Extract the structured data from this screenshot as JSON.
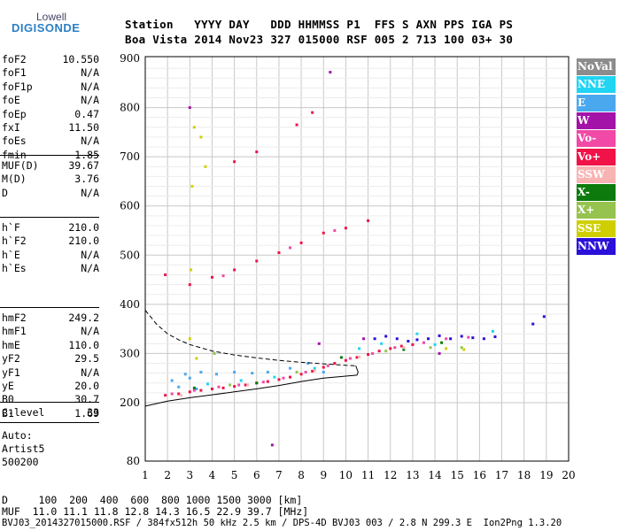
{
  "logo": {
    "top": "Lowell",
    "bottom": "DIGISONDE"
  },
  "header": {
    "line1": "Station   YYYY DAY   DDD HHMMSS P1  FFS S AXN PPS IGA PS",
    "line2": "Boa Vista 2014 Nov23 327 015000 RSF 005 2 713 100 03+ 30"
  },
  "params_group1": [
    {
      "k": "foF2",
      "v": "10.550"
    },
    {
      "k": "foF1",
      "v": "N/A"
    },
    {
      "k": "foF1p",
      "v": "N/A"
    },
    {
      "k": "foE",
      "v": "N/A"
    },
    {
      "k": "foEp",
      "v": "0.47"
    },
    {
      "k": "fxI",
      "v": "11.50"
    },
    {
      "k": "foEs",
      "v": "N/A"
    },
    {
      "k": "fmin",
      "v": "1.85"
    }
  ],
  "params_group2": [
    {
      "k": "MUF(D)",
      "v": "39.67"
    },
    {
      "k": "M(D)",
      "v": "3.76"
    },
    {
      "k": "D",
      "v": "N/A"
    }
  ],
  "params_group3": [
    {
      "k": "h`F",
      "v": "210.0"
    },
    {
      "k": "h`F2",
      "v": "210.0"
    },
    {
      "k": "h`E",
      "v": "N/A"
    },
    {
      "k": "h`Es",
      "v": "N/A"
    }
  ],
  "params_group4": [
    {
      "k": "hmF2",
      "v": "249.2"
    },
    {
      "k": "hmF1",
      "v": "N/A"
    },
    {
      "k": "hmE",
      "v": "110.0"
    },
    {
      "k": "yF2",
      "v": "29.5"
    },
    {
      "k": "yF1",
      "v": "N/A"
    },
    {
      "k": "yE",
      "v": "20.0"
    },
    {
      "k": "B0",
      "v": "30.7"
    },
    {
      "k": "B1",
      "v": "1.69"
    }
  ],
  "params_group5": [
    {
      "k": "C-level",
      "v": "33"
    }
  ],
  "auto": [
    "Auto:",
    "Artist5",
    "500200"
  ],
  "footer": {
    "line1": "D     100  200  400  600  800 1000 1500 3000 [km]",
    "line2": "MUF  11.0 11.1 11.8 12.8 14.3 16.5 22.9 39.7 [MHz]",
    "line3": "BVJ03_2014327015000.RSF / 384fx512h 50 kHz 2.5 km / DPS-4D BVJ03 003 / 2.8 N 299.3 E  Ion2Png 1.3.20"
  },
  "legend": [
    {
      "label": "NoVal",
      "bg": "#8c8c8c",
      "fg": "#ffffff"
    },
    {
      "label": "NNE",
      "bg": "#21d4f2",
      "fg": "#ffffff"
    },
    {
      "label": "E",
      "bg": "#4aa8ee",
      "fg": "#ffffff"
    },
    {
      "label": "W",
      "bg": "#a313a8",
      "fg": "#ffffff"
    },
    {
      "label": "Vo-",
      "bg": "#f04aa6",
      "fg": "#ffffff"
    },
    {
      "label": "Vo+",
      "bg": "#f01248",
      "fg": "#ffffff"
    },
    {
      "label": "SSW",
      "bg": "#f8b3b3",
      "fg": "#ffffff"
    },
    {
      "label": "X-",
      "bg": "#0c7a0c",
      "fg": "#ffffff"
    },
    {
      "label": "X+",
      "bg": "#95c34e",
      "fg": "#ffffff"
    },
    {
      "label": "SSE",
      "bg": "#cfcf00",
      "fg": "#ffffff"
    },
    {
      "label": "NNW",
      "bg": "#2a10d8",
      "fg": "#ffffff"
    }
  ],
  "chart_data": {
    "type": "scatter",
    "xlim": [
      1,
      20
    ],
    "ylim": [
      80,
      900
    ],
    "x_ticks": [
      1,
      2,
      3,
      4,
      5,
      6,
      7,
      8,
      9,
      10,
      11,
      12,
      13,
      14,
      15,
      16,
      17,
      18,
      19,
      20
    ],
    "y_ticks": [
      80,
      200,
      300,
      400,
      500,
      600,
      700,
      800,
      900
    ],
    "grid": true,
    "series": [
      {
        "name": "E",
        "color": "#4aa8ee",
        "points": [
          [
            2.2,
            245
          ],
          [
            2.8,
            258
          ],
          [
            3.5,
            262
          ],
          [
            4.2,
            258
          ],
          [
            5.0,
            262
          ],
          [
            5.8,
            260
          ],
          [
            6.5,
            262
          ],
          [
            7.5,
            270
          ],
          [
            8.3,
            280
          ],
          [
            9.0,
            262
          ],
          [
            2.5,
            232
          ],
          [
            3.0,
            250
          ],
          [
            3.3,
            228
          ]
        ]
      },
      {
        "name": "Vo+",
        "color": "#f01248",
        "points": [
          [
            1.9,
            215
          ],
          [
            2.5,
            218
          ],
          [
            3.0,
            222
          ],
          [
            3.5,
            225
          ],
          [
            4.0,
            228
          ],
          [
            4.5,
            230
          ],
          [
            5.0,
            233
          ],
          [
            5.5,
            236
          ],
          [
            6.0,
            240
          ],
          [
            6.5,
            243
          ],
          [
            7.0,
            247
          ],
          [
            7.5,
            252
          ],
          [
            8.0,
            258
          ],
          [
            8.5,
            264
          ],
          [
            9.0,
            272
          ],
          [
            9.5,
            280
          ],
          [
            10.0,
            286
          ],
          [
            10.5,
            292
          ],
          [
            11.0,
            298
          ],
          [
            11.5,
            305
          ],
          [
            12.0,
            310
          ],
          [
            12.5,
            315
          ],
          [
            13.0,
            318
          ],
          [
            3.0,
            440
          ],
          [
            4.0,
            455
          ],
          [
            5.0,
            470
          ],
          [
            6.0,
            488
          ],
          [
            7.0,
            505
          ],
          [
            8.0,
            525
          ],
          [
            9.0,
            545
          ],
          [
            10.0,
            555
          ],
          [
            11.0,
            570
          ],
          [
            5.0,
            690
          ],
          [
            6.0,
            710
          ],
          [
            7.8,
            765
          ],
          [
            8.5,
            790
          ],
          [
            1.9,
            460
          ]
        ]
      },
      {
        "name": "Vo-",
        "color": "#f04aa6",
        "points": [
          [
            2.2,
            218
          ],
          [
            3.2,
            225
          ],
          [
            4.3,
            232
          ],
          [
            5.2,
            236
          ],
          [
            6.3,
            242
          ],
          [
            7.2,
            250
          ],
          [
            8.2,
            262
          ],
          [
            9.2,
            275
          ],
          [
            10.2,
            290
          ],
          [
            11.2,
            300
          ],
          [
            12.2,
            312
          ],
          [
            13.5,
            322
          ],
          [
            14.5,
            330
          ],
          [
            15.5,
            333
          ],
          [
            4.5,
            458
          ],
          [
            7.5,
            515
          ],
          [
            9.5,
            550
          ]
        ]
      },
      {
        "name": "NNW",
        "color": "#2a10d8",
        "points": [
          [
            11.3,
            330
          ],
          [
            11.8,
            335
          ],
          [
            12.3,
            330
          ],
          [
            12.8,
            325
          ],
          [
            13.2,
            328
          ],
          [
            13.7,
            330
          ],
          [
            14.2,
            336
          ],
          [
            14.7,
            330
          ],
          [
            15.2,
            335
          ],
          [
            15.7,
            332
          ],
          [
            16.2,
            330
          ],
          [
            16.7,
            334
          ],
          [
            18.4,
            360
          ],
          [
            18.9,
            375
          ]
        ]
      },
      {
        "name": "W",
        "color": "#a313a8",
        "points": [
          [
            9.3,
            872
          ],
          [
            6.7,
            113
          ],
          [
            3.0,
            800
          ],
          [
            14.2,
            300
          ],
          [
            8.8,
            320
          ],
          [
            10.8,
            330
          ]
        ]
      },
      {
        "name": "NNE",
        "color": "#21d4f2",
        "points": [
          [
            3.8,
            238
          ],
          [
            5.3,
            245
          ],
          [
            6.8,
            252
          ],
          [
            8.6,
            270
          ],
          [
            10.6,
            310
          ],
          [
            11.6,
            320
          ],
          [
            13.2,
            340
          ],
          [
            14.0,
            318
          ],
          [
            16.6,
            345
          ]
        ]
      },
      {
        "name": "X-",
        "color": "#0c7a0c",
        "points": [
          [
            3.2,
            230
          ],
          [
            6.0,
            240
          ],
          [
            9.8,
            292
          ],
          [
            12.6,
            308
          ],
          [
            14.3,
            322
          ]
        ]
      },
      {
        "name": "X+",
        "color": "#95c34e",
        "points": [
          [
            4.8,
            236
          ],
          [
            7.8,
            262
          ],
          [
            11.8,
            305
          ],
          [
            13.8,
            312
          ],
          [
            15.2,
            312
          ],
          [
            4.1,
            300
          ]
        ]
      },
      {
        "name": "SSE",
        "color": "#cfcf00",
        "points": [
          [
            3.05,
            470
          ],
          [
            3.1,
            640
          ],
          [
            3.2,
            760
          ],
          [
            3.5,
            740
          ],
          [
            3.7,
            680
          ],
          [
            3.0,
            330
          ],
          [
            3.3,
            290
          ],
          [
            14.5,
            310
          ],
          [
            15.3,
            308
          ]
        ]
      },
      {
        "name": "SSW",
        "color": "#f8b3b3",
        "points": [
          [
            2.6,
            215
          ],
          [
            5.6,
            236
          ],
          [
            8.6,
            265
          ],
          [
            10.6,
            293
          ],
          [
            12.6,
            312
          ]
        ]
      }
    ],
    "curves": [
      {
        "style": "dashed",
        "points": [
          [
            1.0,
            388
          ],
          [
            1.5,
            360
          ],
          [
            2.0,
            340
          ],
          [
            2.5,
            328
          ],
          [
            3.0,
            318
          ],
          [
            4.0,
            305
          ],
          [
            5.0,
            297
          ],
          [
            6.0,
            291
          ],
          [
            7.0,
            286
          ],
          [
            8.0,
            282
          ],
          [
            9.0,
            279
          ],
          [
            10.0,
            276
          ],
          [
            10.5,
            275
          ]
        ]
      },
      {
        "style": "solid",
        "points": [
          [
            1.0,
            193
          ],
          [
            2.0,
            203
          ],
          [
            3.0,
            210
          ],
          [
            4.0,
            216
          ],
          [
            5.0,
            222
          ],
          [
            6.0,
            228
          ],
          [
            7.0,
            235
          ],
          [
            8.0,
            243
          ],
          [
            9.0,
            250
          ],
          [
            10.0,
            254
          ],
          [
            10.5,
            256
          ],
          [
            10.55,
            262
          ],
          [
            10.45,
            275
          ]
        ]
      }
    ]
  }
}
